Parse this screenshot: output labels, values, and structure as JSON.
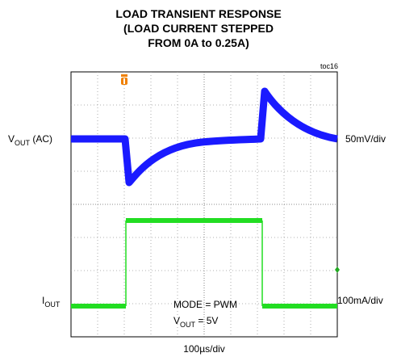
{
  "title": [
    "LOAD TRANSIENT RESPONSE",
    "(LOAD CURRENT STEPPED",
    "FROM 0A to 0.25A)"
  ],
  "figure_id": "toc16",
  "channels": [
    {
      "label": {
        "main": "V",
        "sub": "OUT",
        "suffix": " (AC)"
      },
      "scale": "50mV/div"
    },
    {
      "label": {
        "main": "I",
        "sub": "OUT"
      },
      "scale": "100mA/div"
    }
  ],
  "annotations": [
    {
      "main": "MODE = PWM"
    },
    {
      "main": "V",
      "sub": "OUT",
      "suffix": " = 5V"
    }
  ],
  "time_scale": "100µs/div"
}
